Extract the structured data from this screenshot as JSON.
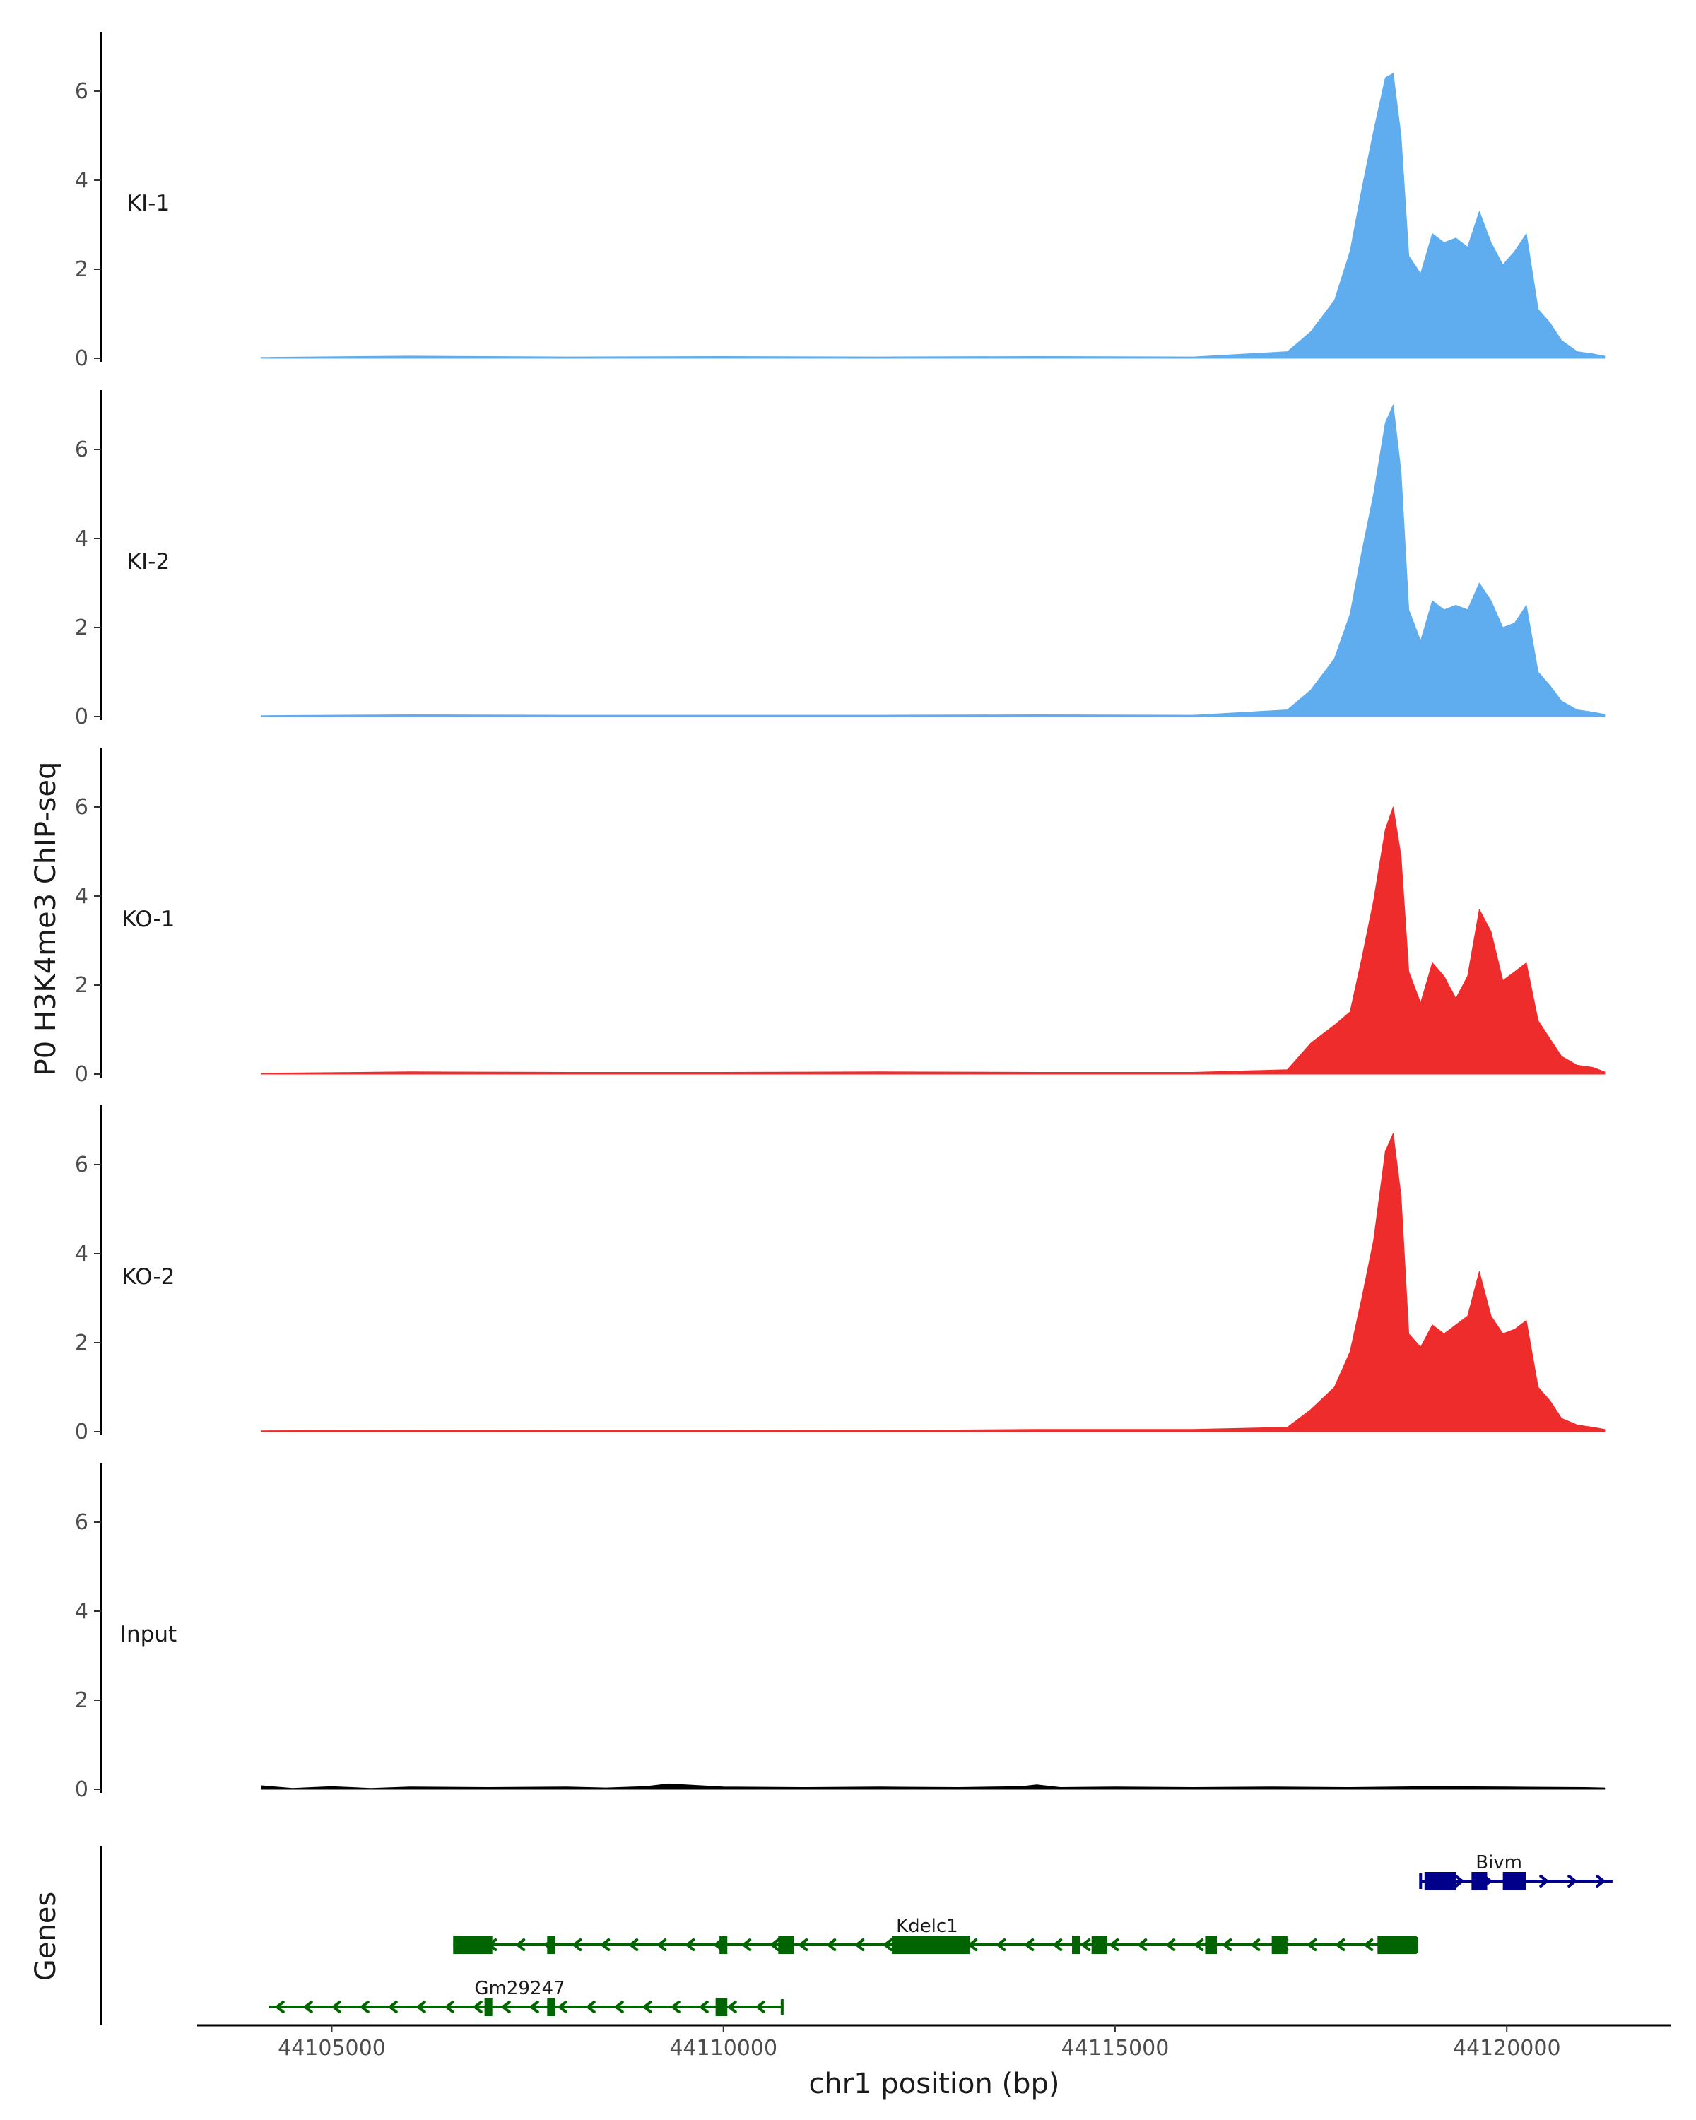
{
  "chart_data": {
    "type": "area",
    "ylabel": "P0 H3K4me3 ChIP-seq",
    "xlabel": "chr1 position (bp)",
    "gene_panel_label": "Genes",
    "xlim": [
      44103300,
      44122100
    ],
    "xticks": [
      44105000,
      44110000,
      44115000,
      44120000
    ],
    "xtick_labels": [
      "44105000",
      "44110000",
      "44115000",
      "44120000"
    ],
    "ylim": [
      0,
      7.5
    ],
    "yticks": [
      0,
      2,
      4,
      6
    ],
    "ytick_labels": [
      "0",
      "2",
      "4",
      "6"
    ],
    "tracks": [
      {
        "name": "KI-1",
        "color": "#5fadee",
        "x": [
          44104100,
          44106000,
          44108000,
          44110000,
          44112000,
          44114000,
          44116000,
          44117200,
          44117500,
          44117800,
          44118000,
          44118150,
          44118300,
          44118450,
          44118550,
          44118650,
          44118750,
          44118900,
          44119050,
          44119200,
          44119350,
          44119500,
          44119650,
          44119800,
          44119950,
          44120100,
          44120250,
          44120400,
          44120550,
          44120700,
          44120900,
          44121100,
          44121250
        ],
        "values": [
          0.02,
          0.05,
          0.03,
          0.04,
          0.03,
          0.04,
          0.03,
          0.15,
          0.6,
          1.3,
          2.4,
          3.8,
          5.1,
          6.3,
          6.4,
          5.0,
          2.3,
          1.9,
          2.8,
          2.6,
          2.7,
          2.5,
          3.3,
          2.6,
          2.1,
          2.4,
          2.8,
          1.1,
          0.8,
          0.4,
          0.15,
          0.1,
          0.05
        ]
      },
      {
        "name": "KI-2",
        "color": "#5fadee",
        "x": [
          44104100,
          44106000,
          44108000,
          44110000,
          44112000,
          44114000,
          44116000,
          44117200,
          44117500,
          44117800,
          44118000,
          44118150,
          44118300,
          44118450,
          44118550,
          44118650,
          44118750,
          44118900,
          44119050,
          44119200,
          44119350,
          44119500,
          44119650,
          44119800,
          44119950,
          44120100,
          44120250,
          44120400,
          44120550,
          44120700,
          44120900,
          44121100,
          44121250
        ],
        "values": [
          0.02,
          0.04,
          0.03,
          0.03,
          0.03,
          0.04,
          0.03,
          0.15,
          0.6,
          1.3,
          2.3,
          3.7,
          5.0,
          6.6,
          7.0,
          5.5,
          2.4,
          1.7,
          2.6,
          2.4,
          2.5,
          2.4,
          3.0,
          2.6,
          2.0,
          2.1,
          2.5,
          1.0,
          0.7,
          0.35,
          0.15,
          0.1,
          0.05
        ]
      },
      {
        "name": "KO-1",
        "color": "#ee2c2c",
        "x": [
          44104100,
          44106000,
          44108000,
          44110000,
          44112000,
          44114000,
          44116000,
          44117200,
          44117500,
          44117800,
          44118000,
          44118150,
          44118300,
          44118450,
          44118550,
          44118650,
          44118750,
          44118900,
          44119050,
          44119200,
          44119350,
          44119500,
          44119650,
          44119800,
          44119950,
          44120100,
          44120250,
          44120400,
          44120550,
          44120700,
          44120900,
          44121100,
          44121250
        ],
        "values": [
          0.02,
          0.05,
          0.04,
          0.04,
          0.05,
          0.04,
          0.04,
          0.1,
          0.7,
          1.1,
          1.4,
          2.6,
          3.9,
          5.5,
          6.0,
          4.9,
          2.3,
          1.6,
          2.5,
          2.2,
          1.7,
          2.2,
          3.7,
          3.2,
          2.1,
          2.3,
          2.5,
          1.2,
          0.8,
          0.4,
          0.2,
          0.15,
          0.05
        ]
      },
      {
        "name": "KO-2",
        "color": "#ee2c2c",
        "x": [
          44104100,
          44106000,
          44108000,
          44110000,
          44112000,
          44114000,
          44116000,
          44117200,
          44117500,
          44117800,
          44118000,
          44118150,
          44118300,
          44118450,
          44118550,
          44118650,
          44118750,
          44118900,
          44119050,
          44119200,
          44119350,
          44119500,
          44119650,
          44119800,
          44119950,
          44120100,
          44120250,
          44120400,
          44120550,
          44120700,
          44120900,
          44121100,
          44121250
        ],
        "values": [
          0.02,
          0.03,
          0.04,
          0.04,
          0.03,
          0.05,
          0.05,
          0.1,
          0.5,
          1.0,
          1.8,
          3.0,
          4.3,
          6.3,
          6.7,
          5.3,
          2.2,
          1.9,
          2.4,
          2.2,
          2.4,
          2.6,
          3.6,
          2.6,
          2.2,
          2.3,
          2.5,
          1.0,
          0.7,
          0.3,
          0.15,
          0.1,
          0.05
        ]
      },
      {
        "name": "Input",
        "color": "#000000",
        "x": [
          44104100,
          44104500,
          44105000,
          44105500,
          44106000,
          44107000,
          44108000,
          44108500,
          44109000,
          44109300,
          44110000,
          44111000,
          44112000,
          44113000,
          44113800,
          44114000,
          44114300,
          44115000,
          44116000,
          44117000,
          44118000,
          44119000,
          44120000,
          44121000,
          44121250
        ],
        "values": [
          0.08,
          0.02,
          0.06,
          0.02,
          0.05,
          0.04,
          0.05,
          0.03,
          0.06,
          0.12,
          0.05,
          0.04,
          0.05,
          0.04,
          0.06,
          0.1,
          0.04,
          0.05,
          0.04,
          0.05,
          0.04,
          0.06,
          0.05,
          0.04,
          0.03
        ]
      }
    ],
    "genes": [
      {
        "name": "Bivm",
        "strand": "+",
        "color": "#00008b",
        "row": 1,
        "start": 44118900,
        "end": 44121350,
        "exons": [
          [
            44118950,
            44119350
          ],
          [
            44119550,
            44119750
          ],
          [
            44119950,
            44120250
          ]
        ]
      },
      {
        "name": "Kdelc1",
        "strand": "-",
        "color": "#006400",
        "row": 2,
        "start": 44106550,
        "end": 44118850,
        "exons": [
          [
            44106550,
            44107050
          ],
          [
            44107750,
            44107850
          ],
          [
            44109950,
            44110050
          ],
          [
            44110700,
            44110900
          ],
          [
            44112150,
            44113150
          ],
          [
            44114450,
            44114550
          ],
          [
            44114700,
            44114900
          ],
          [
            44116150,
            44116300
          ],
          [
            44117000,
            44117200
          ],
          [
            44118350,
            44118850
          ]
        ]
      },
      {
        "name": "Gm29247",
        "strand": "-",
        "color": "#006400",
        "row": 3,
        "start": 44104200,
        "end": 44110750,
        "exons": [
          [
            44106950,
            44107050
          ],
          [
            44107750,
            44107850
          ],
          [
            44109900,
            44110050
          ]
        ]
      }
    ]
  }
}
